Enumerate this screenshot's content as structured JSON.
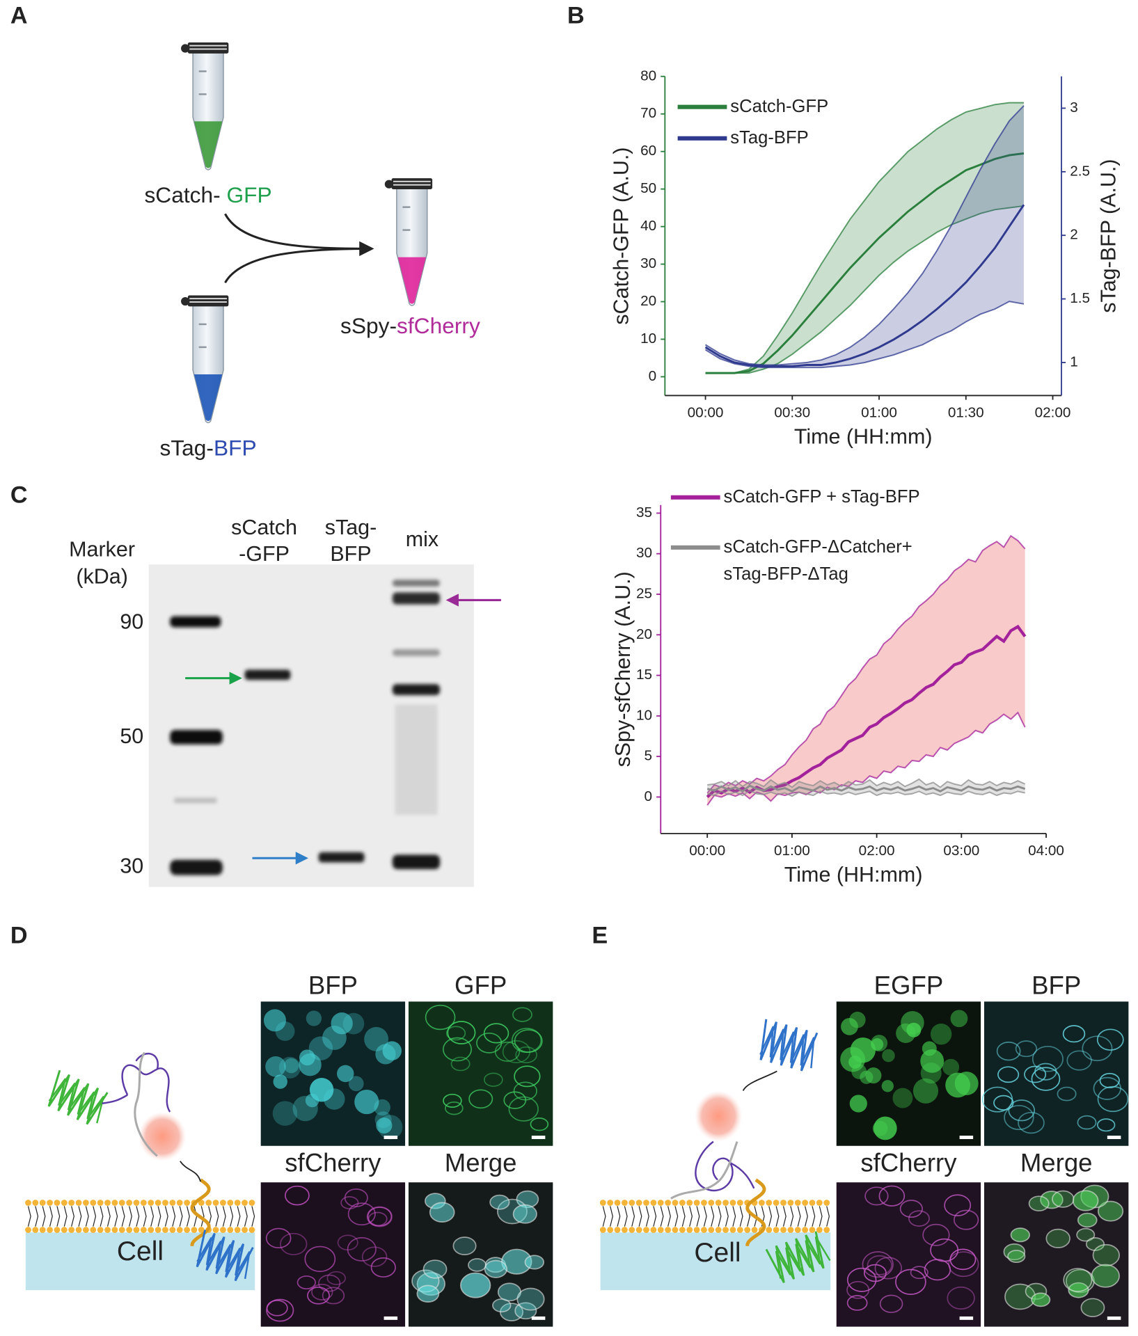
{
  "panel_labels": [
    "A",
    "B",
    "C",
    "D",
    "E"
  ],
  "panel_a": {
    "tubes": [
      {
        "prefix": "sCatch- ",
        "highlight": "GFP"
      },
      {
        "prefix": "sTag-",
        "highlight": "BFP"
      },
      {
        "prefix": "sSpy-",
        "highlight": "sfCherry"
      }
    ]
  },
  "gel": {
    "marker_label": [
      "Marker",
      "(kDa)"
    ],
    "lanes": [
      [
        "sCatch",
        "-GFP"
      ],
      [
        "sTag-",
        "BFP"
      ],
      [
        "mix"
      ]
    ],
    "marker_kda": [
      90,
      50,
      30
    ]
  },
  "chart_data": [
    {
      "type": "line",
      "ylabel": "sCatch-GFP (A.U.)",
      "y2label": "sTag-BFP (A.U.)",
      "xlabel": "Time (HH:mm)",
      "legend": "upper left",
      "x": [
        0,
        5,
        10,
        15,
        20,
        25,
        30,
        35,
        40,
        45,
        50,
        55,
        60,
        65,
        70,
        75,
        80,
        85,
        90,
        95,
        100,
        105,
        110
      ],
      "xlim": [
        -14,
        123
      ],
      "xticks": [
        {
          "value": 0,
          "label": "00:00"
        },
        {
          "value": 30,
          "label": "00:30"
        },
        {
          "value": 60,
          "label": "01:00"
        },
        {
          "value": 90,
          "label": "01:30"
        },
        {
          "value": 120,
          "label": "02:00"
        }
      ],
      "ylim": [
        -5,
        80
      ],
      "yticks": [
        0,
        10,
        20,
        30,
        40,
        50,
        60,
        70,
        80
      ],
      "y2lim": [
        0.74,
        3.25
      ],
      "y2ticks": [
        1,
        1.5,
        2,
        2.5,
        3
      ],
      "series": [
        {
          "name": "sCatch-GFP",
          "color": "#2a7f3c",
          "axis": "y",
          "values": [
            1,
            1,
            1,
            1.5,
            3.5,
            7,
            11,
            15.5,
            20,
            24.5,
            29,
            33,
            37,
            40.5,
            44,
            47,
            50,
            52.5,
            55,
            56.5,
            58,
            59,
            59.5
          ],
          "upper": [
            1,
            1,
            1,
            2,
            5.5,
            11,
            17,
            23.5,
            30,
            36,
            42,
            47,
            52,
            56,
            60,
            63,
            66,
            68.5,
            70.5,
            71.5,
            72.5,
            73,
            73
          ],
          "lower": [
            1,
            1,
            1,
            1,
            2,
            3.5,
            6,
            9,
            12,
            15.5,
            19,
            23,
            27,
            30.5,
            33.5,
            36,
            38.5,
            40.5,
            42,
            43.5,
            44.5,
            45,
            45.5
          ]
        },
        {
          "name": "sTag-BFP",
          "color": "#2f3a8f",
          "axis": "y2",
          "values": [
            1.12,
            1.05,
            1.0,
            0.98,
            0.97,
            0.97,
            0.97,
            0.98,
            0.98,
            1.0,
            1.03,
            1.07,
            1.12,
            1.18,
            1.25,
            1.33,
            1.42,
            1.52,
            1.63,
            1.76,
            1.9,
            2.07,
            2.24
          ],
          "upper": [
            1.14,
            1.07,
            1.02,
            0.99,
            0.98,
            0.98,
            0.99,
            1.0,
            1.02,
            1.06,
            1.12,
            1.2,
            1.3,
            1.42,
            1.55,
            1.7,
            1.88,
            2.08,
            2.3,
            2.52,
            2.72,
            2.9,
            3.02
          ],
          "lower": [
            1.1,
            1.03,
            0.99,
            0.97,
            0.96,
            0.96,
            0.96,
            0.96,
            0.96,
            0.97,
            0.98,
            1.0,
            1.03,
            1.06,
            1.1,
            1.14,
            1.2,
            1.25,
            1.32,
            1.38,
            1.42,
            1.48,
            1.46
          ]
        }
      ]
    },
    {
      "type": "line",
      "ylabel": "sSpy-sfCherry (A.U.)",
      "xlabel": "Time (HH:mm)",
      "legend": "upper left",
      "x": [
        0,
        5,
        10,
        15,
        20,
        25,
        30,
        35,
        40,
        45,
        50,
        55,
        60,
        65,
        70,
        75,
        80,
        85,
        90,
        95,
        100,
        105,
        110,
        115,
        120,
        125,
        130,
        135,
        140,
        145,
        150,
        155,
        160,
        165,
        170,
        175,
        180,
        185,
        190,
        195,
        200,
        205,
        210,
        215,
        220,
        225
      ],
      "xlim": [
        -33,
        240
      ],
      "xticks": [
        {
          "value": 0,
          "label": "00:00"
        },
        {
          "value": 60,
          "label": "01:00"
        },
        {
          "value": 120,
          "label": "02:00"
        },
        {
          "value": 180,
          "label": "03:00"
        },
        {
          "value": 240,
          "label": "04:00"
        }
      ],
      "ylim": [
        -4.5,
        36
      ],
      "yticks": [
        0,
        5,
        10,
        15,
        20,
        25,
        30,
        35
      ],
      "series": [
        {
          "name": "sCatch-GFP + sTag-BFP",
          "color": "#a3229b",
          "band_color": "#f08a8a",
          "axis": "y",
          "values": [
            0,
            0.8,
            0.5,
            1,
            0.7,
            1.1,
            0.6,
            1.2,
            0.8,
            0.9,
            1.3,
            1.5,
            2.0,
            2.4,
            3.0,
            3.6,
            4.0,
            4.8,
            5.3,
            5.8,
            6.8,
            7.2,
            7.6,
            8.6,
            9.0,
            9.8,
            10.3,
            10.9,
            11.6,
            12.0,
            12.8,
            13.5,
            13.9,
            14.8,
            15.5,
            16.3,
            16.6,
            17.5,
            17.9,
            18.2,
            19.0,
            19.8,
            19.2,
            20.5,
            21.0,
            19.8
          ],
          "upper": [
            0.5,
            1.5,
            1.2,
            1.8,
            1.4,
            2.0,
            1.6,
            2.3,
            2.0,
            2.6,
            3.4,
            4.0,
            5.2,
            6.2,
            7.0,
            8.4,
            9.0,
            10.5,
            11.2,
            12.5,
            13.8,
            14.6,
            15.9,
            17.0,
            17.5,
            18.9,
            19.6,
            20.7,
            21.6,
            22.3,
            23.5,
            24.2,
            25.0,
            26.1,
            26.8,
            27.9,
            28.5,
            29.3,
            29.0,
            30.4,
            31.0,
            31.5,
            30.8,
            32.2,
            31.6,
            30.6
          ],
          "lower": [
            -1.0,
            0.2,
            0.0,
            0.4,
            0.1,
            0.5,
            -0.2,
            0.6,
            0.3,
            -0.5,
            0.4,
            0.2,
            0.5,
            0.6,
            0.3,
            0.8,
            0.5,
            1.2,
            0.9,
            1.5,
            1.3,
            2.0,
            1.8,
            2.6,
            2.3,
            3.2,
            3.0,
            3.8,
            3.6,
            4.5,
            4.4,
            5.2,
            5.0,
            6.1,
            5.8,
            6.6,
            7.0,
            7.4,
            8.2,
            7.9,
            9.0,
            9.5,
            10.2,
            9.6,
            10.4,
            8.6
          ]
        },
        {
          "name": "sCatch-GFP-ΔCatcher+ sTag-BFP-ΔTag",
          "color": "#8c8c8c",
          "axis": "y",
          "values": [
            1.0,
            0.8,
            1.3,
            0.9,
            1.2,
            0.7,
            1.4,
            1.0,
            0.8,
            1.3,
            0.9,
            1.1,
            0.7,
            1.2,
            1.0,
            0.8,
            1.3,
            0.9,
            1.1,
            0.8,
            1.2,
            0.9,
            1.0,
            1.3,
            0.8,
            1.1,
            0.9,
            1.2,
            0.8,
            1.0,
            1.3,
            0.9,
            1.1,
            0.7,
            1.2,
            1.0,
            0.8,
            1.3,
            1.0,
            0.9,
            1.2,
            0.8,
            1.1,
            1.0,
            1.3,
            1.0
          ],
          "upper": [
            1.5,
            1.6,
            1.9,
            1.4,
            2.0,
            1.3,
            1.9,
            1.7,
            1.3,
            2.1,
            1.5,
            1.8,
            1.2,
            1.9,
            1.6,
            1.4,
            2.0,
            1.5,
            1.8,
            1.3,
            1.9,
            1.5,
            1.6,
            2.1,
            1.4,
            1.8,
            1.5,
            1.9,
            1.3,
            1.7,
            2.2,
            1.5,
            1.8,
            1.2,
            1.9,
            1.6,
            1.4,
            2.1,
            1.6,
            1.5,
            1.9,
            1.4,
            1.8,
            1.6,
            2.0,
            1.6
          ],
          "lower": [
            0.4,
            0.2,
            0.7,
            0.3,
            0.6,
            0.2,
            0.8,
            0.4,
            0.3,
            0.6,
            0.3,
            0.5,
            0.1,
            0.6,
            0.4,
            0.2,
            0.7,
            0.4,
            0.5,
            0.3,
            0.6,
            0.3,
            0.5,
            0.7,
            0.2,
            0.5,
            0.4,
            0.6,
            0.3,
            0.4,
            0.7,
            0.3,
            0.5,
            0.2,
            0.6,
            0.4,
            0.3,
            0.7,
            0.4,
            0.3,
            0.6,
            0.2,
            0.5,
            0.4,
            0.7,
            0.5
          ]
        }
      ]
    }
  ],
  "panel_d": {
    "channels": [
      "BFP",
      "GFP",
      "sfCherry",
      "Merge"
    ],
    "cell": "Cell"
  },
  "panel_e": {
    "channels": [
      "EGFP",
      "BFP",
      "sfCherry",
      "Merge"
    ],
    "cell": "Cell"
  }
}
